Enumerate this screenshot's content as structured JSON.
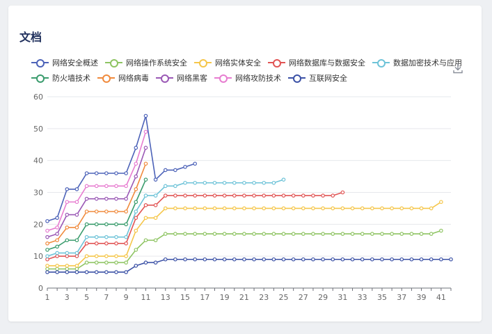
{
  "title": "文档",
  "icons": {
    "download": "download-icon"
  },
  "chart_data": {
    "type": "line",
    "ylim": [
      0,
      60
    ],
    "yticks": [
      0,
      10,
      20,
      30,
      40,
      50,
      60
    ],
    "xticks": [
      "1",
      "3",
      "5",
      "7",
      "9",
      "11",
      "13",
      "15",
      "17",
      "19",
      "21",
      "23",
      "25",
      "27",
      "29",
      "31",
      "33",
      "35",
      "37",
      "39",
      "41"
    ],
    "grid": "horizontal",
    "legend_position": "top",
    "series": [
      {
        "name": "网络安全概述",
        "color": "#4c62b8",
        "values": [
          21,
          22,
          31,
          31,
          36,
          36,
          36,
          36,
          36,
          44,
          54,
          34,
          37,
          37,
          38,
          39
        ]
      },
      {
        "name": "网络操作系统安全",
        "color": "#8ec462",
        "values": [
          6,
          6,
          6,
          6,
          8,
          8,
          8,
          8,
          8,
          12,
          15,
          15,
          17,
          17,
          17,
          17,
          17,
          17,
          17,
          17,
          17,
          17,
          17,
          17,
          17,
          17,
          17,
          17,
          17,
          17,
          17,
          17,
          17,
          17,
          17,
          17,
          17,
          17,
          17,
          17,
          18
        ]
      },
      {
        "name": "网络实体安全",
        "color": "#f5c64a",
        "values": [
          7,
          7,
          7,
          7,
          10,
          10,
          10,
          10,
          10,
          18,
          22,
          22,
          25,
          25,
          25,
          25,
          25,
          25,
          25,
          25,
          25,
          25,
          25,
          25,
          25,
          25,
          25,
          25,
          25,
          25,
          25,
          25,
          25,
          25,
          25,
          25,
          25,
          25,
          25,
          25,
          27
        ]
      },
      {
        "name": "网络数据库与数据安全",
        "color": "#e15454",
        "values": [
          9,
          10,
          10,
          10,
          14,
          14,
          14,
          14,
          14,
          22,
          26,
          26,
          29,
          29,
          29,
          29,
          29,
          29,
          29,
          29,
          29,
          29,
          29,
          29,
          29,
          29,
          29,
          29,
          29,
          29,
          30
        ]
      },
      {
        "name": "数据加密技术与应用",
        "color": "#6ec3d8",
        "values": [
          10,
          11,
          11,
          11,
          16,
          16,
          16,
          16,
          16,
          24,
          29,
          29,
          32,
          32,
          33,
          33,
          33,
          33,
          33,
          33,
          33,
          33,
          33,
          33,
          34
        ]
      },
      {
        "name": "防火墙技术",
        "color": "#3a9c6d",
        "values": [
          12,
          13,
          15,
          15,
          20,
          20,
          20,
          20,
          20,
          27,
          34
        ]
      },
      {
        "name": "网络病毒",
        "color": "#f08a3c",
        "values": [
          14,
          15,
          19,
          19,
          24,
          24,
          24,
          24,
          24,
          31,
          39
        ]
      },
      {
        "name": "网络黑客",
        "color": "#9a58b5",
        "values": [
          16,
          17,
          23,
          23,
          28,
          28,
          28,
          28,
          28,
          35,
          44
        ]
      },
      {
        "name": "网络攻防技术",
        "color": "#e77cd0",
        "values": [
          18,
          19,
          27,
          27,
          32,
          32,
          32,
          32,
          32,
          39,
          49
        ]
      },
      {
        "name": "互联网安全",
        "color": "#3b51a6",
        "values": [
          5,
          5,
          5,
          5,
          5,
          5,
          5,
          5,
          5,
          7,
          8,
          8,
          9,
          9,
          9,
          9,
          9,
          9,
          9,
          9,
          9,
          9,
          9,
          9,
          9,
          9,
          9,
          9,
          9,
          9,
          9,
          9,
          9,
          9,
          9,
          9,
          9,
          9,
          9,
          9,
          9,
          9
        ]
      }
    ]
  }
}
